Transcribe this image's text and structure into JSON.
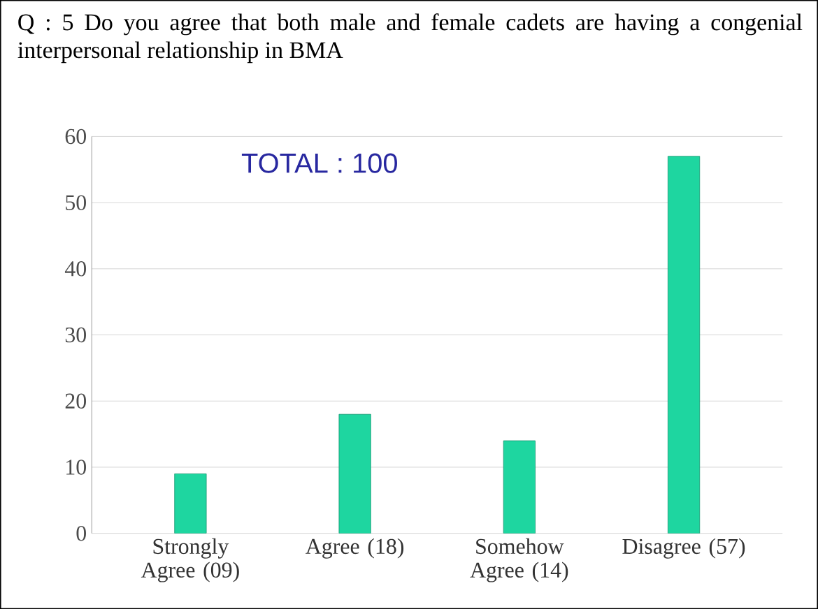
{
  "chart_data": {
    "type": "bar",
    "title": "Q : 5 Do you agree that both male and female cadets are having a congenial interpersonal relationship in BMA",
    "categories": [
      "Strongly Agree (09)",
      "Agree (18)",
      "Somehow Agree (14)",
      "Disagree (57)"
    ],
    "values": [
      9,
      18,
      14,
      57
    ],
    "color": "#1ed6a0",
    "ylim": [
      0,
      60
    ],
    "yticks": [
      0,
      10,
      20,
      30,
      40,
      50,
      60
    ],
    "grid": "y",
    "annotations": [
      "TOTAL  :  100"
    ]
  }
}
